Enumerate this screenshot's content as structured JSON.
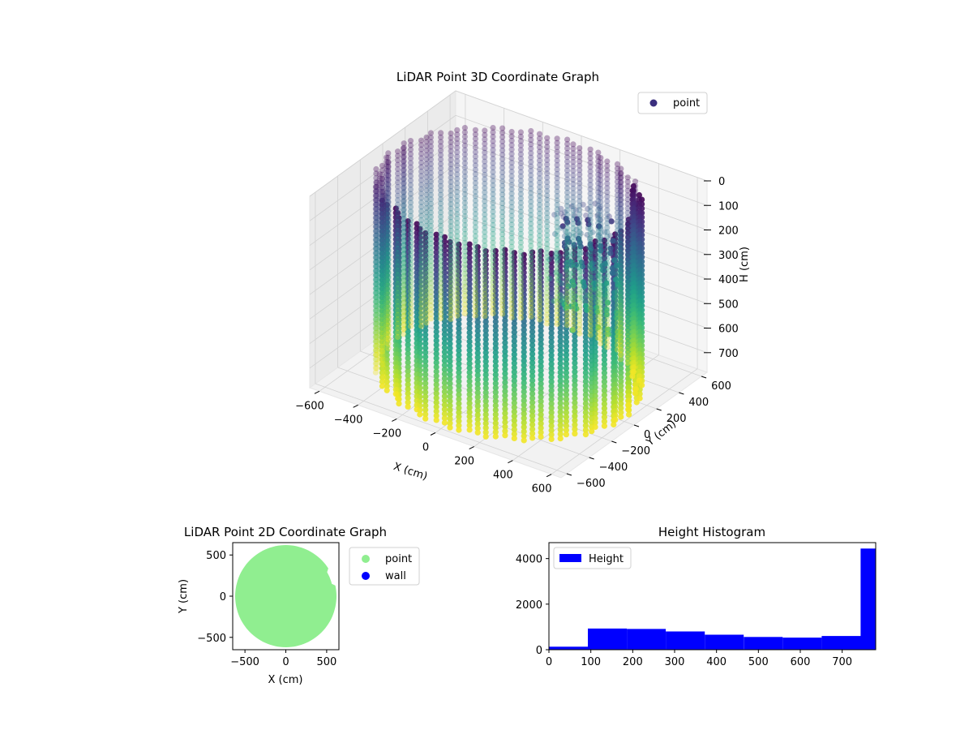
{
  "chart_data": [
    {
      "type": "scatter3d",
      "title": "LiDAR Point 3D Coordinate Graph",
      "xlabel": "X (cm)",
      "ylabel": "Y (cm)",
      "zlabel": "H (cm)",
      "xlim": [
        -650,
        650
      ],
      "ylim": [
        -650,
        650
      ],
      "zlim": [
        0,
        780
      ],
      "z_inverted": true,
      "xticks": [
        -600,
        -400,
        -200,
        0,
        200,
        400,
        600
      ],
      "yticks": [
        -600,
        -400,
        -200,
        0,
        200,
        400,
        600
      ],
      "zticks": [
        0,
        100,
        200,
        300,
        400,
        500,
        600,
        700
      ],
      "legend": [
        {
          "label": "point",
          "color": "#3b2f7e"
        }
      ],
      "legend_position": "upper-right",
      "colormap": "viridis",
      "grid": true,
      "description_series": [
        {
          "name": "point",
          "shape": "cylindrical wall",
          "radius": 600,
          "h_range": [
            0,
            780
          ]
        }
      ]
    },
    {
      "type": "scatter",
      "title": "LiDAR Point 2D Coordinate Graph",
      "xlabel": "X (cm)",
      "ylabel": "Y (cm)",
      "xlim": [
        -650,
        650
      ],
      "ylim": [
        -650,
        650
      ],
      "xticks": [
        -500,
        0,
        500
      ],
      "yticks": [
        -500,
        0,
        500
      ],
      "series": [
        {
          "name": "point",
          "color": "#90ee90",
          "shape": "filled disk",
          "radius": 620
        },
        {
          "name": "wall",
          "color": "#0000ff",
          "points": []
        }
      ],
      "legend_position": "outside-right"
    },
    {
      "type": "bar",
      "title": "Height Histogram",
      "xlim": [
        0,
        780
      ],
      "ylim": [
        0,
        4700
      ],
      "xticks": [
        0,
        100,
        200,
        300,
        400,
        500,
        600,
        700
      ],
      "yticks": [
        0,
        2000,
        4000
      ],
      "series": [
        {
          "name": "Height",
          "color": "#0000ff"
        }
      ],
      "bins": [
        {
          "start": 0,
          "end": 93,
          "value": 130
        },
        {
          "start": 93,
          "end": 186,
          "value": 930
        },
        {
          "start": 186,
          "end": 279,
          "value": 910
        },
        {
          "start": 279,
          "end": 372,
          "value": 800
        },
        {
          "start": 372,
          "end": 465,
          "value": 660
        },
        {
          "start": 465,
          "end": 558,
          "value": 560
        },
        {
          "start": 558,
          "end": 651,
          "value": 530
        },
        {
          "start": 651,
          "end": 744,
          "value": 600
        },
        {
          "start": 744,
          "end": 780,
          "value": 4440
        }
      ],
      "legend_position": "upper-left"
    }
  ]
}
